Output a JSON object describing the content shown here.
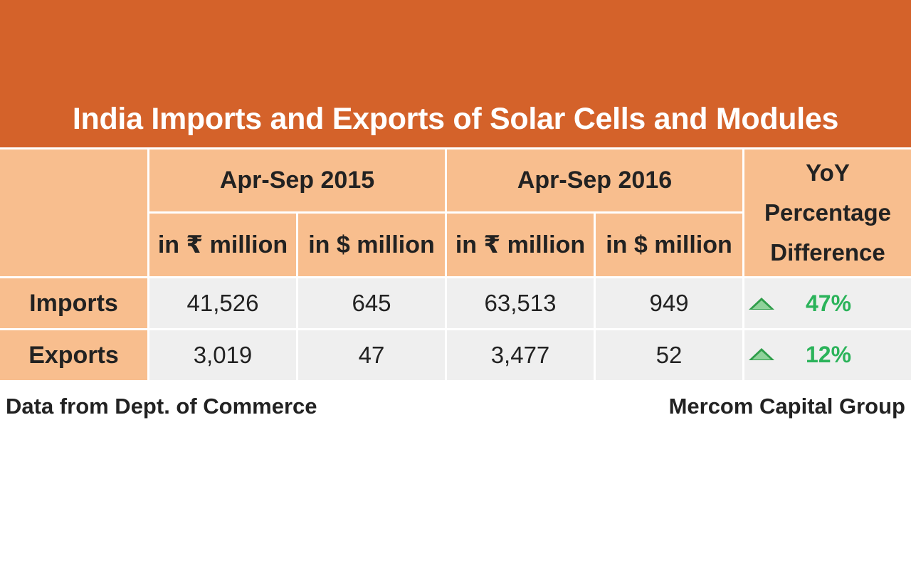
{
  "chart_data": {
    "type": "table",
    "title": "India Imports and Exports of Solar Cells and Modules",
    "period_headers": [
      "Apr-Sep 2015",
      "Apr-Sep 2016"
    ],
    "unit_headers": [
      "in ₹ million",
      "in $ million",
      "in ₹ million",
      "in $ million"
    ],
    "yoy_header": [
      "YoY",
      "Percentage",
      "Difference"
    ],
    "rows": [
      {
        "label": "Imports",
        "values": [
          "41,526",
          "645",
          "63,513",
          "949"
        ],
        "yoy": "47%",
        "trend": "up"
      },
      {
        "label": "Exports",
        "values": [
          "3,019",
          "47",
          "3,477",
          "52"
        ],
        "yoy": "12%",
        "trend": "up"
      }
    ],
    "source": "Data from Dept. of Commerce",
    "credit": "Mercom Capital Group",
    "colors": {
      "banner": "#d4622a",
      "header_fill": "#f8be8e",
      "value_fill": "#efefef",
      "positive": "#2bb35a"
    }
  }
}
